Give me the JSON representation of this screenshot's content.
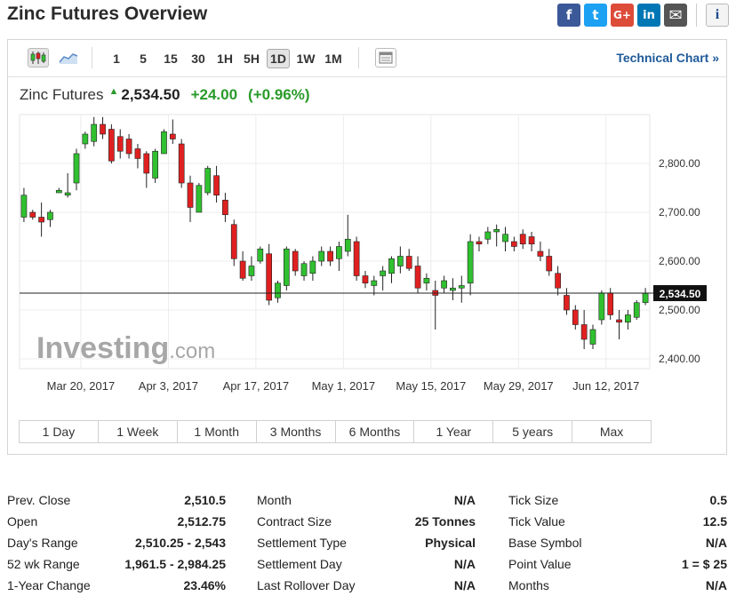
{
  "header": {
    "title": "Zinc Futures Overview",
    "share": [
      {
        "icon": "facebook-icon",
        "glyph": "f",
        "color": "#3b5998"
      },
      {
        "icon": "twitter-icon",
        "glyph": "t",
        "color": "#1da1f2"
      },
      {
        "icon": "google-plus-icon",
        "glyph": "G+",
        "color": "#dd4b39"
      },
      {
        "icon": "linkedin-icon",
        "glyph": "in",
        "color": "#0077b5"
      },
      {
        "icon": "email-icon",
        "glyph": "✉",
        "color": "#555555"
      }
    ],
    "info_glyph": "i"
  },
  "toolbar": {
    "intervals": [
      "1",
      "5",
      "15",
      "30",
      "1H",
      "5H",
      "1D",
      "1W",
      "1M"
    ],
    "active_interval": "1D",
    "technical_chart_label": "Technical Chart »"
  },
  "quote": {
    "name": "Zinc Futures",
    "direction_glyph": "▲",
    "last": "2,534.50",
    "change": "+24.00",
    "change_pct": "(+0.96%)"
  },
  "chart_data": {
    "type": "candlestick",
    "y_ticks": [
      "2,800.00",
      "2,700.00",
      "2,600.00",
      "2,500.00",
      "2,400.00"
    ],
    "y_tick_values": [
      2800,
      2700,
      2600,
      2500,
      2400
    ],
    "ylim": [
      2380,
      2900
    ],
    "x_ticks": [
      "Mar 20, 2017",
      "Apr 3, 2017",
      "Apr 17, 2017",
      "May 1, 2017",
      "May 15, 2017",
      "May 29, 2017",
      "Jun 12, 2017"
    ],
    "x_tick_index": [
      6.5,
      16.5,
      26.5,
      36.5,
      46.5,
      56.5,
      66.5
    ],
    "current_price": 2534.5,
    "current_price_label": "2,534.50",
    "watermark": "Investing.com",
    "colors": {
      "up": "#30c030",
      "down": "#e02020",
      "wick": "#222222"
    },
    "candles": [
      [
        2690,
        2750,
        2680,
        2735
      ],
      [
        2700,
        2705,
        2685,
        2690
      ],
      [
        2690,
        2720,
        2650,
        2680
      ],
      [
        2685,
        2705,
        2670,
        2700
      ],
      [
        2740,
        2750,
        2740,
        2745
      ],
      [
        2735,
        2780,
        2730,
        2740
      ],
      [
        2760,
        2830,
        2745,
        2820
      ],
      [
        2840,
        2865,
        2830,
        2860
      ],
      [
        2845,
        2895,
        2835,
        2880
      ],
      [
        2880,
        2895,
        2850,
        2860
      ],
      [
        2870,
        2880,
        2800,
        2805
      ],
      [
        2855,
        2870,
        2810,
        2825
      ],
      [
        2850,
        2860,
        2810,
        2820
      ],
      [
        2830,
        2840,
        2790,
        2810
      ],
      [
        2820,
        2825,
        2750,
        2780
      ],
      [
        2770,
        2830,
        2760,
        2825
      ],
      [
        2820,
        2870,
        2820,
        2865
      ],
      [
        2860,
        2890,
        2840,
        2850
      ],
      [
        2840,
        2850,
        2750,
        2760
      ],
      [
        2760,
        2775,
        2680,
        2710
      ],
      [
        2700,
        2760,
        2705,
        2755
      ],
      [
        2740,
        2795,
        2735,
        2790
      ],
      [
        2775,
        2795,
        2720,
        2735
      ],
      [
        2725,
        2740,
        2680,
        2695
      ],
      [
        2675,
        2685,
        2590,
        2605
      ],
      [
        2600,
        2620,
        2560,
        2565
      ],
      [
        2570,
        2610,
        2560,
        2590
      ],
      [
        2600,
        2630,
        2595,
        2625
      ],
      [
        2615,
        2635,
        2510,
        2520
      ],
      [
        2525,
        2560,
        2515,
        2555
      ],
      [
        2550,
        2630,
        2540,
        2625
      ],
      [
        2620,
        2625,
        2570,
        2580
      ],
      [
        2570,
        2600,
        2560,
        2595
      ],
      [
        2575,
        2610,
        2560,
        2600
      ],
      [
        2600,
        2630,
        2590,
        2620
      ],
      [
        2620,
        2630,
        2590,
        2600
      ],
      [
        2605,
        2640,
        2580,
        2630
      ],
      [
        2620,
        2695,
        2610,
        2645
      ],
      [
        2640,
        2650,
        2560,
        2570
      ],
      [
        2570,
        2580,
        2545,
        2555
      ],
      [
        2550,
        2570,
        2530,
        2560
      ],
      [
        2570,
        2590,
        2540,
        2580
      ],
      [
        2575,
        2610,
        2555,
        2605
      ],
      [
        2590,
        2630,
        2575,
        2610
      ],
      [
        2610,
        2625,
        2580,
        2585
      ],
      [
        2590,
        2610,
        2535,
        2545
      ],
      [
        2555,
        2575,
        2540,
        2565
      ],
      [
        2540,
        2560,
        2460,
        2530
      ],
      [
        2545,
        2570,
        2535,
        2560
      ],
      [
        2540,
        2565,
        2520,
        2545
      ],
      [
        2545,
        2570,
        2515,
        2550
      ],
      [
        2555,
        2655,
        2530,
        2640
      ],
      [
        2640,
        2650,
        2620,
        2635
      ],
      [
        2645,
        2670,
        2635,
        2660
      ],
      [
        2660,
        2675,
        2630,
        2665
      ],
      [
        2640,
        2670,
        2620,
        2655
      ],
      [
        2640,
        2650,
        2620,
        2630
      ],
      [
        2655,
        2665,
        2625,
        2635
      ],
      [
        2650,
        2660,
        2620,
        2635
      ],
      [
        2620,
        2640,
        2600,
        2610
      ],
      [
        2610,
        2625,
        2570,
        2580
      ],
      [
        2575,
        2590,
        2530,
        2545
      ],
      [
        2530,
        2545,
        2490,
        2500
      ],
      [
        2500,
        2510,
        2460,
        2470
      ],
      [
        2470,
        2500,
        2420,
        2440
      ],
      [
        2430,
        2470,
        2420,
        2460
      ],
      [
        2480,
        2540,
        2470,
        2535
      ],
      [
        2535,
        2545,
        2480,
        2490
      ],
      [
        2480,
        2500,
        2440,
        2475
      ],
      [
        2475,
        2500,
        2460,
        2490
      ],
      [
        2485,
        2520,
        2480,
        2515
      ],
      [
        2515,
        2545,
        2510,
        2534
      ]
    ]
  },
  "ranges": [
    "1 Day",
    "1 Week",
    "1 Month",
    "3 Months",
    "6 Months",
    "1 Year",
    "5 years",
    "Max"
  ],
  "stats": {
    "col1": [
      {
        "label": "Prev. Close",
        "value": "2,510.5"
      },
      {
        "label": "Open",
        "value": "2,512.75"
      },
      {
        "label": "Day's Range",
        "value": "2,510.25 - 2,543"
      },
      {
        "label": "52 wk Range",
        "value": "1,961.5 - 2,984.25"
      },
      {
        "label": "1-Year Change",
        "value": "23.46%"
      }
    ],
    "col2": [
      {
        "label": "Month",
        "value": "N/A"
      },
      {
        "label": "Contract Size",
        "value": "25 Tonnes"
      },
      {
        "label": "Settlement Type",
        "value": "Physical"
      },
      {
        "label": "Settlement Day",
        "value": "N/A"
      },
      {
        "label": "Last Rollover Day",
        "value": "N/A"
      }
    ],
    "col3": [
      {
        "label": "Tick Size",
        "value": "0.5"
      },
      {
        "label": "Tick Value",
        "value": "12.5"
      },
      {
        "label": "Base Symbol",
        "value": "N/A"
      },
      {
        "label": "Point Value",
        "value": "1 = $ 25"
      },
      {
        "label": "Months",
        "value": "N/A"
      }
    ]
  }
}
